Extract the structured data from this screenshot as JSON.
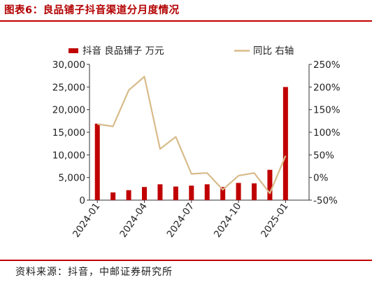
{
  "title": "图表6：良品铺子抖音渠道分月度情况",
  "source": "资料来源：抖音，中邮证券研究所",
  "chart_data": {
    "type": "bar",
    "legend_position": "top",
    "grid": false,
    "categories": [
      "2024-01",
      "2024-02",
      "2024-03",
      "2024-04",
      "2024-05",
      "2024-06",
      "2024-07",
      "2024-08",
      "2024-09",
      "2024-10",
      "2024-11",
      "2024-12",
      "2025-01",
      "2025-02"
    ],
    "x_tick_labels": [
      "2024-01",
      "2024-04",
      "2024-07",
      "2024-10",
      "2025-01"
    ],
    "series": [
      {
        "name": "抖音 良品铺子 万元",
        "type": "bar",
        "axis": "left",
        "color": "#c00000",
        "values": [
          16900,
          1700,
          2200,
          2900,
          3500,
          3000,
          3200,
          3500,
          2900,
          3800,
          3700,
          6700,
          25000,
          null
        ]
      },
      {
        "name": "同比 右轴",
        "type": "line",
        "axis": "right",
        "unit": "%",
        "color": "#d8bb8a",
        "values": [
          118,
          113,
          193,
          223,
          63,
          90,
          8,
          10,
          -27,
          4,
          10,
          -35,
          48,
          null
        ]
      }
    ],
    "y_left": {
      "min": 0,
      "max": 30000,
      "ticks": [
        "0",
        "5,000",
        "10,000",
        "15,000",
        "20,000",
        "25,000",
        "30,000"
      ]
    },
    "y_right": {
      "min": -50,
      "max": 250,
      "ticks": [
        "-50%",
        "0%",
        "50%",
        "100%",
        "150%",
        "200%",
        "250%"
      ]
    }
  }
}
